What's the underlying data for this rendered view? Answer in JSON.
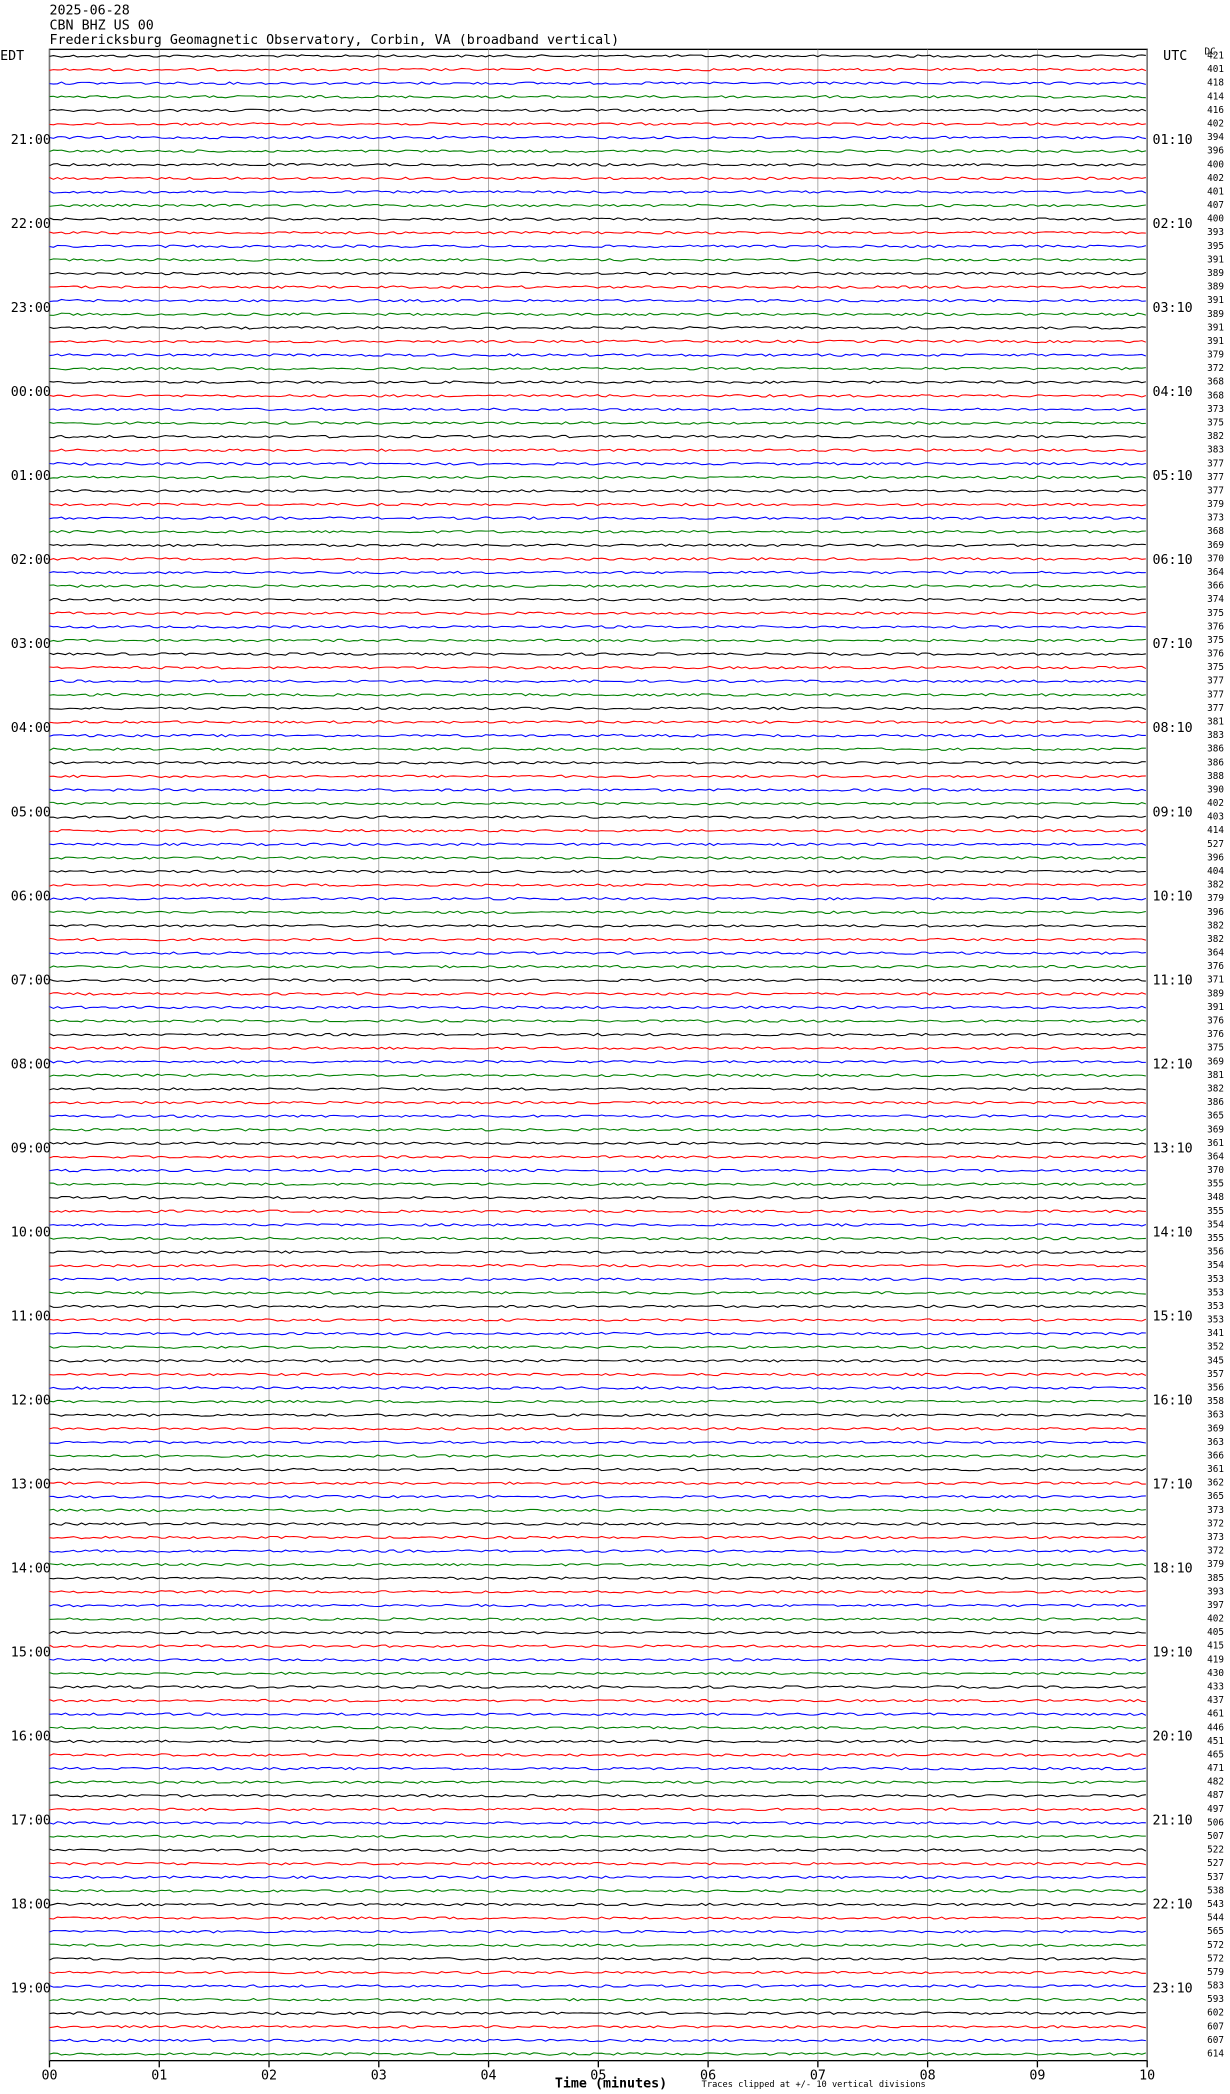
{
  "chart_data": {
    "type": "helicorder",
    "header": [
      "2025-06-28",
      "CBN BHZ US 00",
      "Fredericksburg Geomagnetic Observatory, Corbin, VA (broadband vertical)"
    ],
    "left_zone": "EDT",
    "right_zone": "UTC",
    "dc_label": "DC",
    "left_times": [
      "21:00",
      "22:00",
      "23:00",
      "00:00",
      "01:00",
      "02:00",
      "03:00",
      "04:00",
      "05:00",
      "06:00",
      "07:00",
      "08:00",
      "09:00",
      "10:00",
      "11:00",
      "12:00",
      "13:00",
      "14:00",
      "15:00",
      "16:00",
      "17:00",
      "18:00",
      "19:00"
    ],
    "right_times": [
      "01:10",
      "02:10",
      "03:10",
      "04:10",
      "05:10",
      "06:10",
      "07:10",
      "08:10",
      "09:10",
      "10:10",
      "11:10",
      "12:10",
      "13:10",
      "14:10",
      "15:10",
      "16:10",
      "17:10",
      "18:10",
      "19:10",
      "20:10",
      "21:10",
      "22:10",
      "23:10"
    ],
    "colors": [
      "#000000",
      "#ff0000",
      "#0000ff",
      "#007f00"
    ],
    "dc": [
      421,
      401,
      418,
      414,
      416,
      402,
      394,
      396,
      400,
      402,
      401,
      407,
      400,
      393,
      395,
      391,
      389,
      389,
      391,
      389,
      391,
      391,
      379,
      372,
      368,
      368,
      373,
      375,
      382,
      383,
      377,
      377,
      377,
      379,
      373,
      368,
      369,
      370,
      364,
      366,
      374,
      375,
      376,
      375,
      376,
      375,
      377,
      377,
      377,
      381,
      383,
      386,
      386,
      388,
      390,
      402,
      403,
      414,
      527,
      396,
      404,
      382,
      379,
      396,
      382,
      382,
      364,
      376,
      371,
      389,
      391,
      376,
      376,
      375,
      369,
      381,
      382,
      386,
      365,
      369,
      361,
      364,
      370,
      355,
      348,
      355,
      354,
      355,
      356,
      354,
      353,
      353,
      353,
      353,
      341,
      352,
      345,
      357,
      356,
      358,
      363,
      369,
      363,
      366,
      361,
      362,
      365,
      373,
      372,
      373,
      372,
      379,
      385,
      393,
      397,
      402,
      405,
      415,
      419,
      430,
      433,
      437,
      461,
      446,
      451,
      465,
      471,
      482,
      487,
      497,
      506,
      507,
      522,
      527,
      537,
      538,
      543,
      544,
      565,
      572,
      572,
      579,
      583,
      593,
      602,
      607,
      607,
      614
    ],
    "xlim": [
      0,
      10
    ],
    "xticks": [
      {
        "value": 0,
        "label": "00"
      },
      {
        "value": 1,
        "label": "01"
      },
      {
        "value": 2,
        "label": "02"
      },
      {
        "value": 3,
        "label": "03"
      },
      {
        "value": 4,
        "label": "04"
      },
      {
        "value": 5,
        "label": "05"
      },
      {
        "value": 6,
        "label": "06"
      },
      {
        "value": 7,
        "label": "07"
      },
      {
        "value": 8,
        "label": "08"
      },
      {
        "value": 9,
        "label": "09"
      },
      {
        "value": 10,
        "label": "10"
      }
    ],
    "x_label": "Time (minutes)",
    "note": "Traces clipped at +/- 10 vertical divisions",
    "grid": true
  }
}
